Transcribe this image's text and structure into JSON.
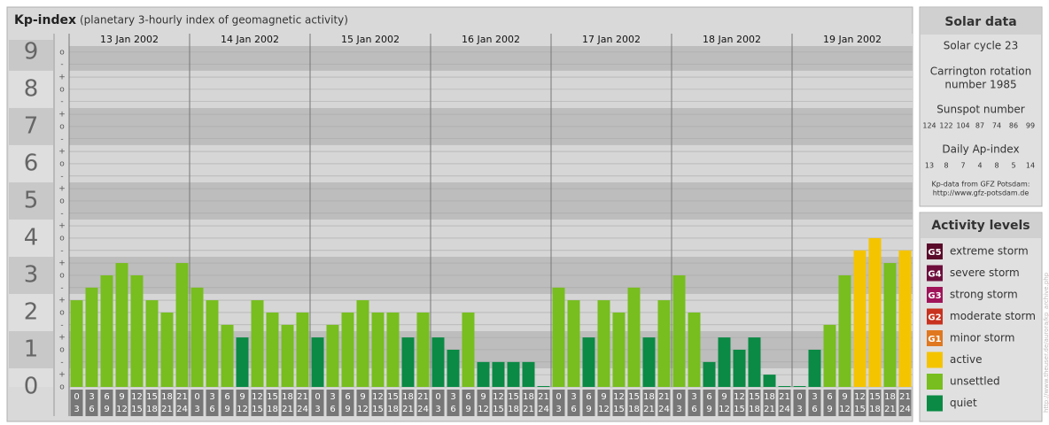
{
  "chart_data": {
    "type": "bar",
    "title": "Kp-index",
    "subtitle": "(planetary 3-hourly index of geomagnetic activity)",
    "ylim": [
      0,
      9.33
    ],
    "yticks": [
      0,
      1,
      2,
      3,
      4,
      5,
      6,
      7,
      8,
      9
    ],
    "minor_yticks": [
      {
        "value": 0,
        "label": "o"
      },
      {
        "value": 0.33,
        "label": "+"
      },
      {
        "value": 0.67,
        "label": "-"
      },
      {
        "value": 1,
        "label": "o"
      },
      {
        "value": 1.33,
        "label": "+"
      },
      {
        "value": 1.67,
        "label": "-"
      },
      {
        "value": 2,
        "label": "o"
      },
      {
        "value": 2.33,
        "label": "+"
      },
      {
        "value": 2.67,
        "label": "-"
      },
      {
        "value": 3,
        "label": "o"
      },
      {
        "value": 3.33,
        "label": "+"
      },
      {
        "value": 3.67,
        "label": "-"
      },
      {
        "value": 4,
        "label": "o"
      },
      {
        "value": 4.33,
        "label": "+"
      },
      {
        "value": 4.67,
        "label": "-"
      },
      {
        "value": 5,
        "label": "o"
      },
      {
        "value": 5.33,
        "label": "+"
      },
      {
        "value": 5.67,
        "label": "-"
      },
      {
        "value": 6,
        "label": "o"
      },
      {
        "value": 6.33,
        "label": "+"
      },
      {
        "value": 6.67,
        "label": "-"
      },
      {
        "value": 7,
        "label": "o"
      },
      {
        "value": 7.33,
        "label": "+"
      },
      {
        "value": 7.67,
        "label": "-"
      },
      {
        "value": 8,
        "label": "o"
      },
      {
        "value": 8.33,
        "label": "+"
      },
      {
        "value": 8.67,
        "label": "-"
      },
      {
        "value": 9,
        "label": "o"
      }
    ],
    "hours_start": [
      0,
      3,
      6,
      9,
      12,
      15,
      18,
      21
    ],
    "hours_end": [
      3,
      6,
      9,
      12,
      15,
      18,
      21,
      24
    ],
    "days": [
      {
        "date": "13 Jan 2002",
        "values": [
          2.33,
          2.67,
          3,
          3.33,
          3,
          2.33,
          2,
          3.33
        ],
        "colors": [
          "#77be1e",
          "#77be1e",
          "#77be1e",
          "#77be1e",
          "#77be1e",
          "#77be1e",
          "#77be1e",
          "#77be1e"
        ]
      },
      {
        "date": "14 Jan 2002",
        "values": [
          2.67,
          2.33,
          1.67,
          1.33,
          2.33,
          2,
          1.67,
          2
        ],
        "colors": [
          "#77be1e",
          "#77be1e",
          "#77be1e",
          "#0a8a44",
          "#77be1e",
          "#77be1e",
          "#77be1e",
          "#77be1e"
        ]
      },
      {
        "date": "15 Jan 2002",
        "values": [
          1.33,
          1.67,
          2,
          2.33,
          2,
          2,
          1.33,
          2
        ],
        "colors": [
          "#0a8a44",
          "#77be1e",
          "#77be1e",
          "#77be1e",
          "#77be1e",
          "#77be1e",
          "#0a8a44",
          "#77be1e"
        ]
      },
      {
        "date": "16 Jan 2002",
        "values": [
          1.33,
          1,
          2,
          0.67,
          0.67,
          0.67,
          0.67,
          0
        ],
        "colors": [
          "#0a8a44",
          "#0a8a44",
          "#77be1e",
          "#0a8a44",
          "#0a8a44",
          "#0a8a44",
          "#0a8a44",
          "#0a8a44"
        ]
      },
      {
        "date": "17 Jan 2002",
        "values": [
          2.67,
          2.33,
          1.33,
          2.33,
          2,
          2.67,
          1.33,
          2.33
        ],
        "colors": [
          "#77be1e",
          "#77be1e",
          "#0a8a44",
          "#77be1e",
          "#77be1e",
          "#77be1e",
          "#0a8a44",
          "#77be1e"
        ]
      },
      {
        "date": "18 Jan 2002",
        "values": [
          3,
          2,
          0.67,
          1.33,
          1,
          1.33,
          0.33,
          0
        ],
        "colors": [
          "#77be1e",
          "#77be1e",
          "#0a8a44",
          "#0a8a44",
          "#0a8a44",
          "#0a8a44",
          "#0a8a44",
          "#0a8a44"
        ]
      },
      {
        "date": "19 Jan 2002",
        "values": [
          0,
          1,
          1.67,
          3,
          3.67,
          4,
          3.33,
          3.67
        ],
        "colors": [
          "#0a8a44",
          "#0a8a44",
          "#77be1e",
          "#77be1e",
          "#f5c400",
          "#f5c400",
          "#77be1e",
          "#f5c400"
        ]
      }
    ]
  },
  "solar_data": {
    "title": "Solar data",
    "cycle": "Solar cycle 23",
    "carrington": [
      "Carrington rotation",
      "number 1985"
    ],
    "sunspot_title": "Sunspot number",
    "sunspot": [
      124,
      122,
      104,
      87,
      74,
      86,
      99
    ],
    "ap_title": "Daily Ap-index",
    "ap": [
      13,
      8,
      7,
      4,
      8,
      5,
      14
    ],
    "source": [
      "Kp-data from GFZ Potsdam:",
      "http://www.gfz-potsdam.de"
    ]
  },
  "activity_levels": {
    "title": "Activity levels",
    "items": [
      {
        "badge": "G5",
        "label": "extreme storm",
        "color": "#5a0a2a"
      },
      {
        "badge": "G4",
        "label": "severe storm",
        "color": "#6e0e3c"
      },
      {
        "badge": "G3",
        "label": "strong storm",
        "color": "#a0145a"
      },
      {
        "badge": "G2",
        "label": "moderate storm",
        "color": "#c8321e"
      },
      {
        "badge": "G1",
        "label": "minor storm",
        "color": "#e07820"
      },
      {
        "label": "active",
        "color": "#f5c400"
      },
      {
        "label": "unsettled",
        "color": "#77be1e"
      },
      {
        "label": "quiet",
        "color": "#0a8a44"
      }
    ]
  },
  "credit": "http://www.theuser.de/aurora/kp_archive.php"
}
